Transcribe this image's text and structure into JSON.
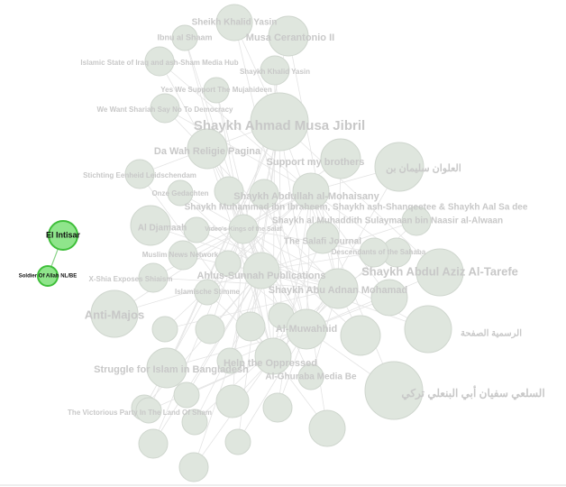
{
  "nodes": [
    {
      "label": "Sheikh Khalid Yasin"
    },
    {
      "label": "Ibnu al Shaam"
    },
    {
      "label": "Musa Cerantonio II"
    },
    {
      "label": "Islamic State of Iraq and ash-Sham Media Hub"
    },
    {
      "label": "Shaykh Khalid Yasin"
    },
    {
      "label": "Yes We Support The Mujahideen"
    },
    {
      "label": "We Want Shariah Say No To Democracy"
    },
    {
      "label": "Shaykh Ahmad Musa Jibril"
    },
    {
      "label": "Da Wah Religie Pagina"
    },
    {
      "label": "Support my brothers"
    },
    {
      "label": "العلوان سليمان بن"
    },
    {
      "label": "Stichting Eenheid Leidschendam"
    },
    {
      "label": "Onze Gedachten"
    },
    {
      "label": "Shaykh Abdullah al-Mohaisany"
    },
    {
      "label": "Shaykh Muhammad ibn Ibraheem, Shaykh ash-Shanqeetee & Shaykh Aal Sa dee"
    },
    {
      "label": "Shaykh al Muhaddith Sulaymaan bin Naasir al-Alwaan"
    },
    {
      "label": "Al Djamaah"
    },
    {
      "label": "Video's Kings of the Salaf"
    },
    {
      "label": "The Salafi Journal"
    },
    {
      "label": "Descendants of the Sahaba"
    },
    {
      "label": "Muslim News Network"
    },
    {
      "label": "Shaykh Abdul Aziz Al-Tarefe"
    },
    {
      "label": "Ahlus-Sunnah Publications"
    },
    {
      "label": "X-Shia Exposes Shiaism"
    },
    {
      "label": "Shaykh Abu Adnan Mohamad"
    },
    {
      "label": "Islamische Stimme"
    },
    {
      "label": "Anti-Majos"
    },
    {
      "label": "Al-Muwahhid"
    },
    {
      "label": "Struggle for Islam in Bangladesh"
    },
    {
      "label": "Help the Oppressed"
    },
    {
      "label": "Al-Ghuraba Media Be"
    },
    {
      "label": "السلعي سفيان أبي البنعلي تركي"
    },
    {
      "label": "The Victorious Party In The Land Of Sham"
    },
    {
      "label": "الرسمية الصفحة"
    },
    {
      "label": "El Intisar"
    },
    {
      "label": "Soldier Of Allah NL/BE"
    }
  ]
}
